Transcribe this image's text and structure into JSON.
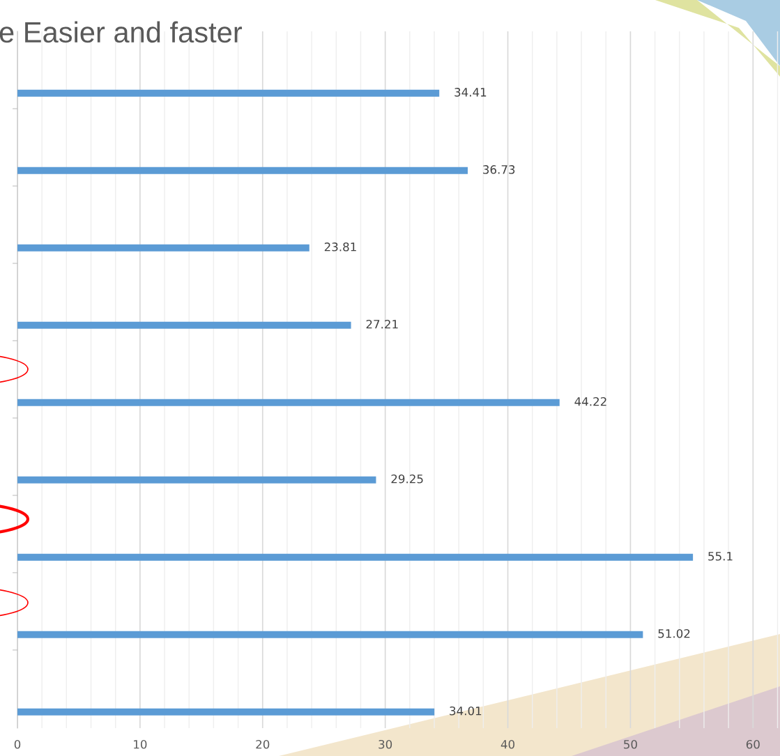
{
  "chart_data": {
    "type": "bar",
    "orientation": "horizontal",
    "title": "e Easier and faster",
    "categories": [
      null,
      null,
      null,
      null,
      null,
      null,
      null,
      null,
      null
    ],
    "values": [
      34.41,
      36.73,
      23.81,
      27.21,
      44.22,
      29.25,
      55.1,
      51.02,
      34.01
    ],
    "color": "#5b9bd5",
    "data_labels": true,
    "grid": "x",
    "legend": false,
    "xlim": [
      0,
      62.2
    ],
    "xticks": [
      0,
      {
        "value": 2,
        "label": null
      },
      {
        "value": 4,
        "label": null
      },
      {
        "value": 6,
        "label": null
      },
      {
        "value": 8,
        "label": null
      },
      10,
      {
        "value": 12,
        "label": null
      },
      {
        "value": 14,
        "label": null
      },
      {
        "value": 16,
        "label": null
      },
      {
        "value": 18,
        "label": null
      },
      20,
      {
        "value": 22,
        "label": null
      },
      {
        "value": 24,
        "label": null
      },
      {
        "value": 26,
        "label": null
      },
      {
        "value": 28,
        "label": null
      },
      30,
      {
        "value": 32,
        "label": null
      },
      {
        "value": 34,
        "label": null
      },
      {
        "value": 36,
        "label": null
      },
      {
        "value": 38,
        "label": null
      },
      40,
      {
        "value": 42,
        "label": null
      },
      {
        "value": 44,
        "label": null
      },
      {
        "value": 46,
        "label": null
      },
      {
        "value": 48,
        "label": null
      },
      50,
      {
        "value": 52,
        "label": null
      },
      {
        "value": 54,
        "label": null
      },
      {
        "value": 56,
        "label": null
      },
      {
        "value": 58,
        "label": null
      },
      60,
      {
        "value": 62,
        "label": null
      }
    ]
  }
}
